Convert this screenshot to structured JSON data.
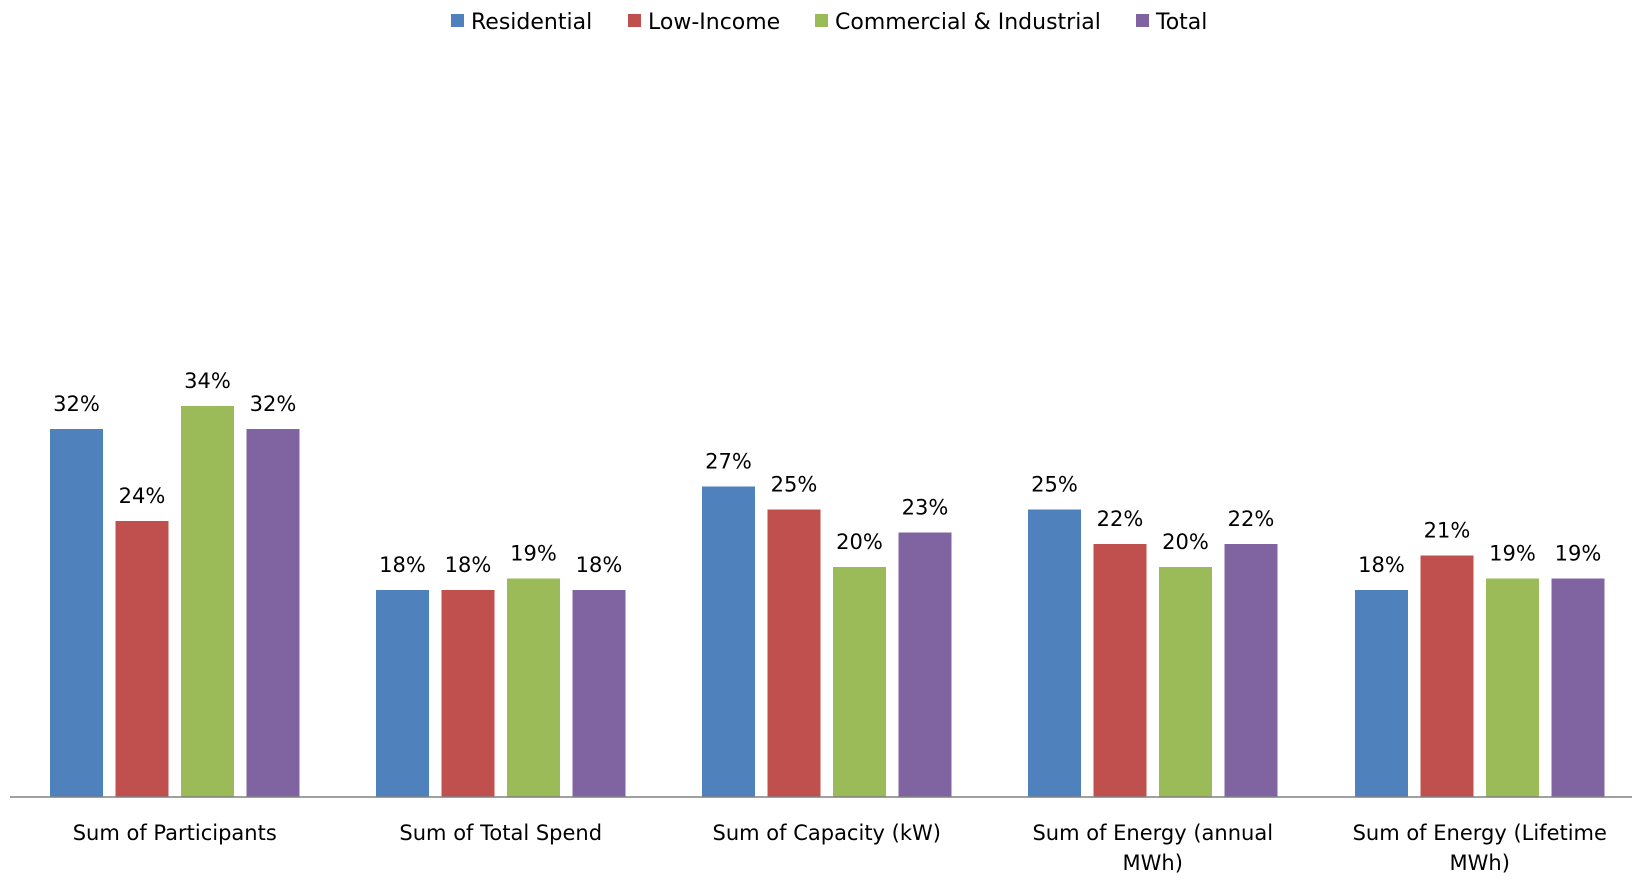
{
  "chart_data": {
    "type": "bar",
    "title": "",
    "xlabel": "",
    "ylabel": "",
    "ylim": [
      0,
      0.4
    ],
    "grid": false,
    "legend_position": "top-center",
    "value_format": "percent",
    "categories": [
      "Sum of Participants",
      "Sum of Total Spend",
      "Sum of Capacity (kW)",
      "Sum of Energy (annual MWh)",
      "Sum of Energy (Lifetime MWh)"
    ],
    "series": [
      {
        "name": "Residential",
        "color": "#4F81BD",
        "values": [
          0.32,
          0.18,
          0.27,
          0.25,
          0.18
        ],
        "labels": [
          "32%",
          "18%",
          "27%",
          "25%",
          "18%"
        ]
      },
      {
        "name": "Low-Income",
        "color": "#C0504D",
        "values": [
          0.24,
          0.18,
          0.25,
          0.22,
          0.21
        ],
        "labels": [
          "24%",
          "18%",
          "25%",
          "22%",
          "21%"
        ]
      },
      {
        "name": "Commercial & Industrial",
        "color": "#9BBB59",
        "values": [
          0.34,
          0.19,
          0.2,
          0.2,
          0.19
        ],
        "labels": [
          "34%",
          "19%",
          "20%",
          "20%",
          "19%"
        ]
      },
      {
        "name": "Total",
        "color": "#8064A2",
        "values": [
          0.32,
          0.18,
          0.23,
          0.22,
          0.19
        ],
        "labels": [
          "32%",
          "18%",
          "23%",
          "22%",
          "19%"
        ]
      }
    ]
  }
}
